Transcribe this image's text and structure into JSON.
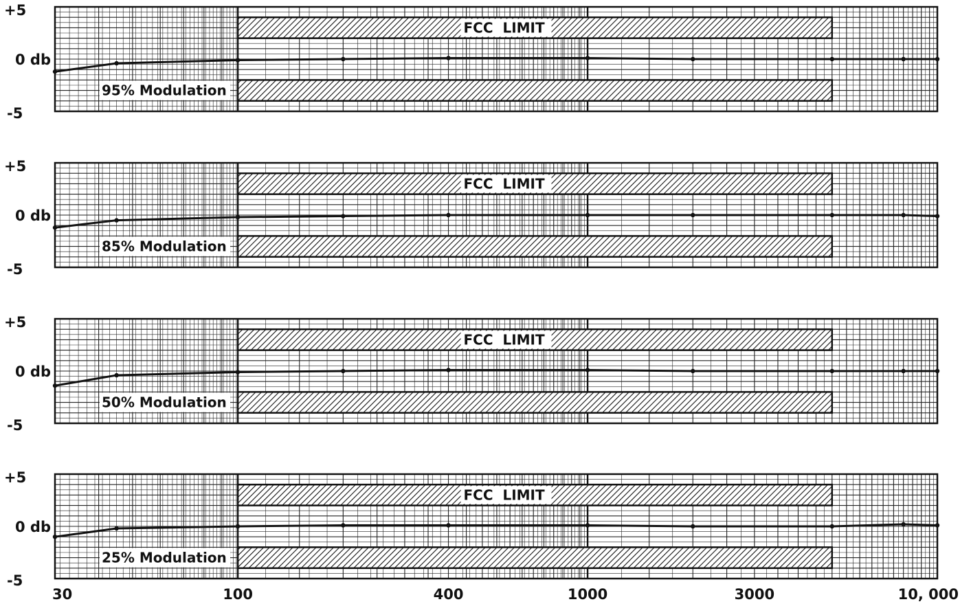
{
  "chart_data": [
    {
      "type": "line",
      "title": "",
      "modulation_label": "95% Modulation",
      "limit_label": "FCC  LIMIT",
      "xlabel": "",
      "ylabel": "",
      "x_scale": "log",
      "xlim": [
        30,
        10000
      ],
      "ylim": [
        -5,
        5
      ],
      "y_ticks": [
        "+5",
        "0 db",
        "-5"
      ],
      "limit_band": {
        "x_range": [
          100,
          5000
        ],
        "upper_db": [
          2,
          4
        ],
        "lower_db": [
          -4,
          -2
        ]
      },
      "series": [
        {
          "x": [
            30,
            45,
            100,
            200,
            400,
            1000,
            2000,
            5000,
            8000,
            10000
          ],
          "y": [
            -1.2,
            -0.4,
            -0.1,
            0.0,
            0.1,
            0.1,
            0.0,
            0.0,
            0.0,
            0.0
          ]
        }
      ]
    },
    {
      "type": "line",
      "title": "",
      "modulation_label": "85% Modulation",
      "limit_label": "FCC  LIMIT",
      "xlabel": "",
      "ylabel": "",
      "x_scale": "log",
      "xlim": [
        30,
        10000
      ],
      "ylim": [
        -5,
        5
      ],
      "y_ticks": [
        "+5",
        "0 db",
        "-5"
      ],
      "limit_band": {
        "x_range": [
          100,
          5000
        ],
        "upper_db": [
          2,
          4
        ],
        "lower_db": [
          -4,
          -2
        ]
      },
      "series": [
        {
          "x": [
            30,
            45,
            100,
            200,
            400,
            1000,
            2000,
            5000,
            8000,
            10000
          ],
          "y": [
            -1.2,
            -0.5,
            -0.2,
            -0.1,
            0.0,
            0.0,
            0.0,
            0.0,
            0.0,
            -0.1
          ]
        }
      ]
    },
    {
      "type": "line",
      "title": "",
      "modulation_label": "50% Modulation",
      "limit_label": "FCC  LIMIT",
      "xlabel": "",
      "ylabel": "",
      "x_scale": "log",
      "xlim": [
        30,
        10000
      ],
      "ylim": [
        -5,
        5
      ],
      "y_ticks": [
        "+5",
        "0 db",
        "-5"
      ],
      "limit_band": {
        "x_range": [
          100,
          5000
        ],
        "upper_db": [
          2,
          4
        ],
        "lower_db": [
          -4,
          -2
        ]
      },
      "series": [
        {
          "x": [
            30,
            45,
            100,
            200,
            400,
            1000,
            2000,
            5000,
            8000,
            10000
          ],
          "y": [
            -1.4,
            -0.4,
            -0.1,
            0.0,
            0.1,
            0.1,
            0.0,
            0.0,
            0.0,
            0.0
          ]
        }
      ]
    },
    {
      "type": "line",
      "title": "",
      "modulation_label": "25% Modulation",
      "limit_label": "FCC  LIMIT",
      "xlabel": "",
      "ylabel": "",
      "x_scale": "log",
      "xlim": [
        30,
        10000
      ],
      "ylim": [
        -5,
        5
      ],
      "y_ticks": [
        "+5",
        "0 db",
        "-5"
      ],
      "limit_band": {
        "x_range": [
          100,
          5000
        ],
        "upper_db": [
          2,
          4
        ],
        "lower_db": [
          -4,
          -2
        ]
      },
      "series": [
        {
          "x": [
            30,
            45,
            100,
            200,
            400,
            1000,
            2000,
            5000,
            8000,
            10000
          ],
          "y": [
            -1.0,
            -0.2,
            0.0,
            0.1,
            0.1,
            0.1,
            0.0,
            0.0,
            0.2,
            0.1
          ]
        }
      ]
    }
  ],
  "x_axis": {
    "ticks": [
      {
        "value": 30,
        "label": "30"
      },
      {
        "value": 100,
        "label": "100"
      },
      {
        "value": 400,
        "label": "400"
      },
      {
        "value": 1000,
        "label": "1000"
      },
      {
        "value": 3000,
        "label": "3000"
      },
      {
        "value": 10000,
        "label": "10, 000"
      }
    ]
  },
  "colors": {
    "ink": "#111111",
    "grid": "#222222",
    "paper": "#ffffff"
  }
}
